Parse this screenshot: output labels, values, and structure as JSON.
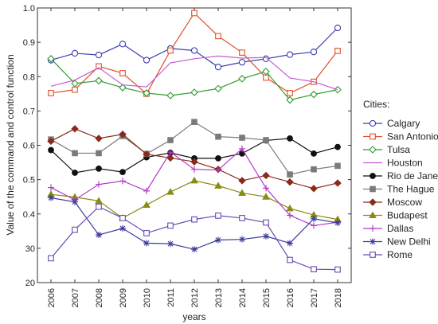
{
  "chart_data": {
    "type": "line",
    "xlabel": "years",
    "ylabel": "Value of the command and control function",
    "x": [
      "2006",
      "2007",
      "2008",
      "2009",
      "2010",
      "2011",
      "2012",
      "2013",
      "2014",
      "2015",
      "2016",
      "2017",
      "2018"
    ],
    "ylim": [
      0.2,
      1.0
    ],
    "yticks": [
      "1.0",
      "0.9",
      "0.8",
      "0.7",
      "0.6",
      "0.5",
      "0.4",
      "30",
      "20"
    ],
    "grid": false,
    "legend_title": "Cities:",
    "legend_position": "right",
    "series": [
      {
        "name": "Calgary",
        "color": "#3b3bb0",
        "marker": "circle",
        "values": [
          0.848,
          0.868,
          0.863,
          0.895,
          0.848,
          0.882,
          0.876,
          0.828,
          0.842,
          0.852,
          0.864,
          0.872,
          0.942
        ]
      },
      {
        "name": "San Antonio",
        "color": "#e0502a",
        "marker": "square",
        "values": [
          0.752,
          0.762,
          0.83,
          0.81,
          0.75,
          0.876,
          0.985,
          0.918,
          0.87,
          0.797,
          0.752,
          0.785,
          0.875
        ]
      },
      {
        "name": "Tulsa",
        "color": "#2f9a2f",
        "marker": "diamond",
        "values": [
          0.852,
          0.78,
          0.788,
          0.768,
          0.752,
          0.745,
          0.754,
          0.765,
          0.794,
          0.815,
          0.732,
          0.748,
          0.762
        ]
      },
      {
        "name": "Houston",
        "color": "#c45ad2",
        "marker": "none",
        "values": [
          0.772,
          0.79,
          0.826,
          0.776,
          0.77,
          0.84,
          0.852,
          0.86,
          0.854,
          0.856,
          0.796,
          0.785,
          0.762
        ]
      },
      {
        "name": "Rio de Janeiro",
        "color": "#111111",
        "marker": "filled-circle",
        "values": [
          0.586,
          0.52,
          0.532,
          0.522,
          0.565,
          0.578,
          0.562,
          0.562,
          0.576,
          0.614,
          0.62,
          0.576,
          0.595
        ]
      },
      {
        "name": "The Hague",
        "color": "#7a7a7a",
        "marker": "filled-square",
        "values": [
          0.617,
          0.577,
          0.577,
          0.627,
          0.575,
          0.615,
          0.668,
          0.625,
          0.622,
          0.615,
          0.515,
          0.53,
          0.54
        ]
      },
      {
        "name": "Moscow",
        "color": "#8b2a1a",
        "marker": "filled-diamond",
        "values": [
          0.612,
          0.648,
          0.62,
          0.632,
          0.574,
          0.563,
          0.552,
          0.53,
          0.497,
          0.512,
          0.493,
          0.474,
          0.49
        ]
      },
      {
        "name": "Budapest",
        "color": "#8a8a14",
        "marker": "filled-triangle",
        "values": [
          0.457,
          0.449,
          0.438,
          0.388,
          0.426,
          0.464,
          0.497,
          0.482,
          0.461,
          0.45,
          0.416,
          0.397,
          0.384
        ]
      },
      {
        "name": "Dallas",
        "color": "#b43cc8",
        "marker": "plus",
        "values": [
          0.477,
          0.441,
          0.486,
          0.496,
          0.467,
          0.58,
          0.53,
          0.528,
          0.59,
          0.475,
          0.396,
          0.366,
          0.376
        ]
      },
      {
        "name": "New Delhi",
        "color": "#3a3a9a",
        "marker": "star",
        "values": [
          0.447,
          0.435,
          0.339,
          0.358,
          0.315,
          0.313,
          0.297,
          0.324,
          0.326,
          0.335,
          0.315,
          0.386,
          0.374
        ]
      },
      {
        "name": "Rome",
        "color": "#6a4ab0",
        "marker": "square",
        "values": [
          0.271,
          0.354,
          0.421,
          0.388,
          0.344,
          0.366,
          0.384,
          0.395,
          0.388,
          0.375,
          0.266,
          0.239,
          0.238
        ]
      }
    ]
  }
}
